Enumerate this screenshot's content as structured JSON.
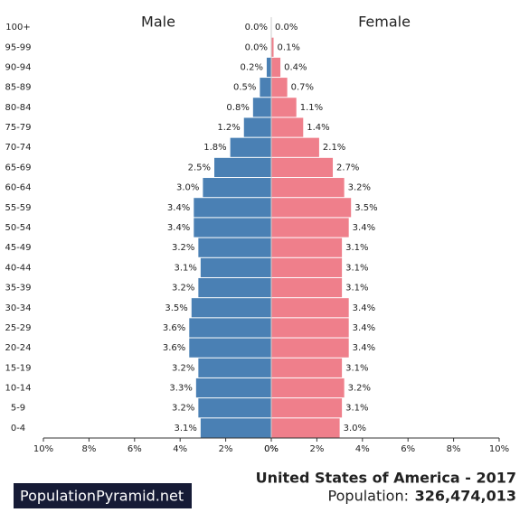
{
  "chart_data": {
    "type": "pyramid",
    "categories": [
      "100+",
      "95-99",
      "90-94",
      "85-89",
      "80-84",
      "75-79",
      "70-74",
      "65-69",
      "60-64",
      "55-59",
      "50-54",
      "45-49",
      "40-44",
      "35-39",
      "30-34",
      "25-29",
      "20-24",
      "15-19",
      "10-14",
      "5-9",
      "0-4"
    ],
    "series": [
      {
        "name": "Male",
        "color": "#4a80b4",
        "values": [
          0.0,
          0.0,
          0.2,
          0.5,
          0.8,
          1.2,
          1.8,
          2.5,
          3.0,
          3.4,
          3.4,
          3.2,
          3.1,
          3.2,
          3.5,
          3.6,
          3.6,
          3.2,
          3.3,
          3.2,
          3.1
        ],
        "value_labels": [
          "0.0%",
          "0.0%",
          "0.2%",
          "0.5%",
          "0.8%",
          "1.2%",
          "1.8%",
          "2.5%",
          "3.0%",
          "3.4%",
          "3.4%",
          "3.2%",
          "3.1%",
          "3.2%",
          "3.5%",
          "3.6%",
          "3.6%",
          "3.2%",
          "3.3%",
          "3.2%",
          "3.1%"
        ]
      },
      {
        "name": "Female",
        "color": "#ef7f8b",
        "values": [
          0.0,
          0.1,
          0.4,
          0.7,
          1.1,
          1.4,
          2.1,
          2.7,
          3.2,
          3.5,
          3.4,
          3.1,
          3.1,
          3.1,
          3.4,
          3.4,
          3.4,
          3.1,
          3.2,
          3.1,
          3.0
        ],
        "value_labels": [
          "0.0%",
          "0.1%",
          "0.4%",
          "0.7%",
          "1.1%",
          "1.4%",
          "2.1%",
          "2.7%",
          "3.2%",
          "3.5%",
          "3.4%",
          "3.1%",
          "3.1%",
          "3.1%",
          "3.4%",
          "3.4%",
          "3.4%",
          "3.1%",
          "3.2%",
          "3.1%",
          "3.0%"
        ]
      }
    ],
    "xlim": [
      0,
      10
    ],
    "xticks": [
      {
        "value": 0,
        "label": "0%"
      },
      {
        "value": 2,
        "label": "2%"
      },
      {
        "value": 4,
        "label": "4%"
      },
      {
        "value": 6,
        "label": "6%"
      },
      {
        "value": 8,
        "label": "8%"
      },
      {
        "value": 10,
        "label": "10%"
      }
    ],
    "country_title": "United States of America - 2017",
    "population_label": "Population:",
    "population": "326,474,013",
    "brand": "PopulationPyramid.net"
  }
}
